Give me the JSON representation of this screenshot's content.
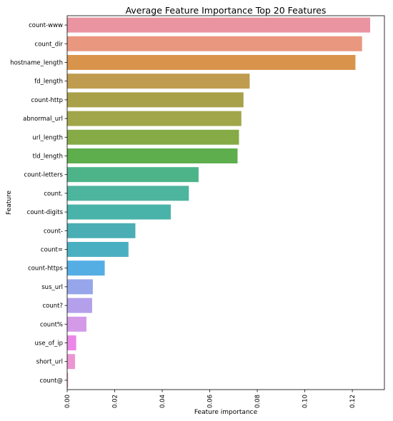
{
  "chart_data": {
    "type": "bar",
    "orientation": "horizontal",
    "title": "Average Feature Importance Top 20 Features",
    "xlabel": "Feature importance",
    "ylabel": "Feature",
    "xlim": [
      0,
      0.1335
    ],
    "xticks": [
      0.0,
      0.02,
      0.04,
      0.06,
      0.08,
      0.1,
      0.12
    ],
    "xtick_labels": [
      "0.00",
      "0.02",
      "0.04",
      "0.06",
      "0.08",
      "0.10",
      "0.12"
    ],
    "grid": false,
    "categories": [
      "count-www",
      "count_dir",
      "hostname_length",
      "fd_length",
      "count-http",
      "abnormal_url",
      "url_length",
      "tld_length",
      "count-letters",
      "count.",
      "count-digits",
      "count-",
      "count=",
      "count-https",
      "sus_url",
      "count?",
      "count%",
      "use_of_ip",
      "short_url",
      "count@"
    ],
    "values": [
      0.1275,
      0.1241,
      0.1213,
      0.0768,
      0.0742,
      0.0733,
      0.0723,
      0.0717,
      0.0553,
      0.0512,
      0.0436,
      0.0287,
      0.0258,
      0.0158,
      0.0108,
      0.0105,
      0.0081,
      0.0038,
      0.0033,
      0.0004
    ],
    "colors": [
      "#ea94a2",
      "#e9977f",
      "#d9944b",
      "#bf9c4f",
      "#a9a04a",
      "#a2a64b",
      "#86ab46",
      "#5eae4d",
      "#4db48a",
      "#4db49e",
      "#4ab3a9",
      "#4aaeb4",
      "#4ab0c1",
      "#55aee3",
      "#97a6ea",
      "#b4a0ea",
      "#d49ae8",
      "#eb87e8",
      "#ed95d3",
      "#ec9eb6"
    ]
  }
}
